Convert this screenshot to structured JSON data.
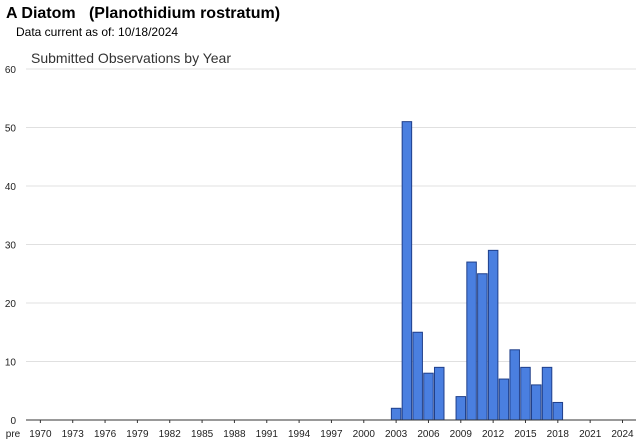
{
  "header": {
    "title": "A Diatom   (Planothidium rostratum)",
    "data_current": "Data current as of: 10/18/2024"
  },
  "chart_data": {
    "type": "bar",
    "title": "Submitted Observations by Year",
    "xlabel": "",
    "ylabel": "",
    "ylim": [
      0,
      60
    ],
    "yticks": [
      0,
      10,
      20,
      30,
      40,
      50,
      60
    ],
    "grid": true,
    "bar_color": "#4a7fe0",
    "bar_edge_color": "#1f3f8a",
    "x_tick_labels": [
      "pre",
      "1970",
      "1973",
      "1976",
      "1979",
      "1982",
      "1985",
      "1988",
      "1991",
      "1994",
      "1997",
      "2000",
      "2003",
      "2006",
      "2009",
      "2012",
      "2015",
      "2018",
      "2021",
      "2024"
    ],
    "categories": [
      "pre",
      "1970",
      "1971",
      "1972",
      "1973",
      "1974",
      "1975",
      "1976",
      "1977",
      "1978",
      "1979",
      "1980",
      "1981",
      "1982",
      "1983",
      "1984",
      "1985",
      "1986",
      "1987",
      "1988",
      "1989",
      "1990",
      "1991",
      "1992",
      "1993",
      "1994",
      "1995",
      "1996",
      "1997",
      "1998",
      "1999",
      "2000",
      "2001",
      "2002",
      "2003",
      "2004",
      "2005",
      "2006",
      "2007",
      "2008",
      "2009",
      "2010",
      "2011",
      "2012",
      "2013",
      "2014",
      "2015",
      "2016",
      "2017",
      "2018",
      "2019",
      "2020",
      "2021",
      "2022",
      "2023",
      "2024"
    ],
    "values": [
      0,
      0,
      0,
      0,
      0,
      0,
      0,
      0,
      0,
      0,
      0,
      0,
      0,
      0,
      0,
      0,
      0,
      0,
      0,
      0,
      0,
      0,
      0,
      0,
      0,
      0,
      0,
      0,
      0,
      0,
      0,
      0,
      0,
      0,
      2,
      51,
      15,
      8,
      9,
      0,
      4,
      27,
      25,
      29,
      7,
      12,
      9,
      6,
      9,
      3,
      0,
      0,
      0,
      0,
      0,
      0
    ]
  }
}
